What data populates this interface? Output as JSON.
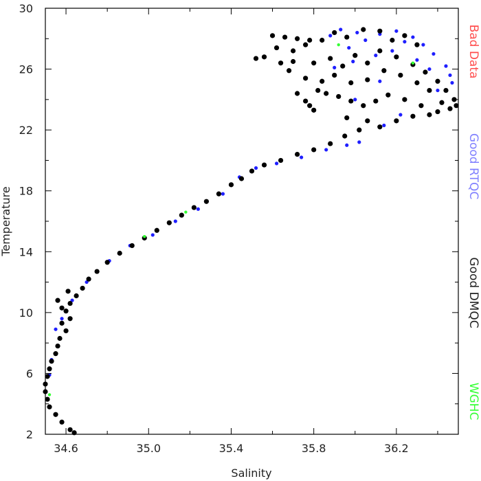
{
  "chart_data": {
    "type": "scatter",
    "title": "",
    "xlabel": "Salinity",
    "ylabel": "Temperature",
    "xlim": [
      34.5,
      36.5
    ],
    "ylim": [
      2,
      30
    ],
    "x_tick_labels": [
      "34.6",
      "35.0",
      "35.4",
      "35.8",
      "36.2"
    ],
    "y_tick_labels": [
      "2",
      "6",
      "10",
      "14",
      "18",
      "22",
      "26",
      "30"
    ],
    "grid": false,
    "legend_placement": "right, outside plot, vertical",
    "series": [
      {
        "name": "Bad Data",
        "color": "#ff4d4d",
        "points": []
      },
      {
        "name": "Good RTQC",
        "color": "#1f1fff",
        "points": [
          [
            35.93,
            28.6
          ],
          [
            36.01,
            28.4
          ],
          [
            36.12,
            28.3
          ],
          [
            36.2,
            28.5
          ],
          [
            36.28,
            28.1
          ],
          [
            36.33,
            27.6
          ],
          [
            36.38,
            27.0
          ],
          [
            36.44,
            26.2
          ],
          [
            36.46,
            25.6
          ],
          [
            36.47,
            25.1
          ],
          [
            36.4,
            24.6
          ],
          [
            36.3,
            26.6
          ],
          [
            36.18,
            27.2
          ],
          [
            36.05,
            27.9
          ],
          [
            35.97,
            27.4
          ],
          [
            35.88,
            28.2
          ],
          [
            36.24,
            27.8
          ],
          [
            36.36,
            26.0
          ],
          [
            36.1,
            26.9
          ],
          [
            35.99,
            26.5
          ],
          [
            35.86,
            20.7
          ],
          [
            35.74,
            20.2
          ],
          [
            35.62,
            19.8
          ],
          [
            35.52,
            19.5
          ],
          [
            35.96,
            21.0
          ],
          [
            36.02,
            21.2
          ],
          [
            35.44,
            18.9
          ],
          [
            35.36,
            17.8
          ],
          [
            35.24,
            16.8
          ],
          [
            35.13,
            16.0
          ],
          [
            35.02,
            15.1
          ],
          [
            34.91,
            14.4
          ],
          [
            34.81,
            13.4
          ],
          [
            34.7,
            12.0
          ],
          [
            34.63,
            10.8
          ],
          [
            34.58,
            9.6
          ],
          [
            34.55,
            8.9
          ],
          [
            34.53,
            6.9
          ],
          [
            34.52,
            5.9
          ],
          [
            36.14,
            22.3
          ],
          [
            36.22,
            23.0
          ],
          [
            36.12,
            25.2
          ],
          [
            35.9,
            26.1
          ],
          [
            36.0,
            24.0
          ]
        ]
      },
      {
        "name": "Good DMQC",
        "color": "#000000",
        "points": [
          [
            35.6,
            28.2
          ],
          [
            35.66,
            28.1
          ],
          [
            35.72,
            28.0
          ],
          [
            35.78,
            27.9
          ],
          [
            35.62,
            27.4
          ],
          [
            35.7,
            27.2
          ],
          [
            35.76,
            27.6
          ],
          [
            35.84,
            27.9
          ],
          [
            35.9,
            28.4
          ],
          [
            35.96,
            28.1
          ],
          [
            36.04,
            28.6
          ],
          [
            36.12,
            28.5
          ],
          [
            36.18,
            27.9
          ],
          [
            36.24,
            28.2
          ],
          [
            36.3,
            27.6
          ],
          [
            35.56,
            26.8
          ],
          [
            35.52,
            26.7
          ],
          [
            35.64,
            26.4
          ],
          [
            35.7,
            26.5
          ],
          [
            35.8,
            26.4
          ],
          [
            35.88,
            26.7
          ],
          [
            35.94,
            26.2
          ],
          [
            36.0,
            26.9
          ],
          [
            36.06,
            26.4
          ],
          [
            36.12,
            27.2
          ],
          [
            36.2,
            26.8
          ],
          [
            36.28,
            26.3
          ],
          [
            36.34,
            25.8
          ],
          [
            36.4,
            25.2
          ],
          [
            36.44,
            24.6
          ],
          [
            36.48,
            24.0
          ],
          [
            36.49,
            23.6
          ],
          [
            36.42,
            23.8
          ],
          [
            36.36,
            24.6
          ],
          [
            36.3,
            25.1
          ],
          [
            36.22,
            25.6
          ],
          [
            36.14,
            25.9
          ],
          [
            36.06,
            25.3
          ],
          [
            35.98,
            25.1
          ],
          [
            35.9,
            25.6
          ],
          [
            35.84,
            25.2
          ],
          [
            35.86,
            24.4
          ],
          [
            35.92,
            24.2
          ],
          [
            35.98,
            23.9
          ],
          [
            36.04,
            23.6
          ],
          [
            36.1,
            23.9
          ],
          [
            36.16,
            24.3
          ],
          [
            36.24,
            24.0
          ],
          [
            36.32,
            23.6
          ],
          [
            36.4,
            23.2
          ],
          [
            36.46,
            23.4
          ],
          [
            35.78,
            23.6
          ],
          [
            35.8,
            23.3
          ],
          [
            35.96,
            22.8
          ],
          [
            36.06,
            22.6
          ],
          [
            36.12,
            22.2
          ],
          [
            36.2,
            22.6
          ],
          [
            36.28,
            22.9
          ],
          [
            36.36,
            23.0
          ],
          [
            36.02,
            22.0
          ],
          [
            35.95,
            21.6
          ],
          [
            35.88,
            21.1
          ],
          [
            35.8,
            20.7
          ],
          [
            35.72,
            20.4
          ],
          [
            35.64,
            20.0
          ],
          [
            35.56,
            19.7
          ],
          [
            35.5,
            19.3
          ],
          [
            35.45,
            18.8
          ],
          [
            35.4,
            18.4
          ],
          [
            35.34,
            17.8
          ],
          [
            35.28,
            17.3
          ],
          [
            35.22,
            16.9
          ],
          [
            35.16,
            16.4
          ],
          [
            35.1,
            15.9
          ],
          [
            35.04,
            15.4
          ],
          [
            34.98,
            14.9
          ],
          [
            34.92,
            14.4
          ],
          [
            34.86,
            13.9
          ],
          [
            34.8,
            13.3
          ],
          [
            34.75,
            12.7
          ],
          [
            34.71,
            12.2
          ],
          [
            34.68,
            11.6
          ],
          [
            34.65,
            11.1
          ],
          [
            34.62,
            10.6
          ],
          [
            34.6,
            10.1
          ],
          [
            34.62,
            9.6
          ],
          [
            34.58,
            9.3
          ],
          [
            34.6,
            8.8
          ],
          [
            34.57,
            8.3
          ],
          [
            34.56,
            7.8
          ],
          [
            34.55,
            7.3
          ],
          [
            34.53,
            6.8
          ],
          [
            34.52,
            6.3
          ],
          [
            34.51,
            5.8
          ],
          [
            34.5,
            5.3
          ],
          [
            34.5,
            4.8
          ],
          [
            34.51,
            4.3
          ],
          [
            34.52,
            3.8
          ],
          [
            34.55,
            3.3
          ],
          [
            34.58,
            2.8
          ],
          [
            34.62,
            2.3
          ],
          [
            34.64,
            2.1
          ],
          [
            34.56,
            10.8
          ],
          [
            34.58,
            10.3
          ],
          [
            34.61,
            11.4
          ],
          [
            35.76,
            23.9
          ],
          [
            35.72,
            24.4
          ],
          [
            35.82,
            24.6
          ],
          [
            35.76,
            25.4
          ],
          [
            35.68,
            25.9
          ]
        ]
      },
      {
        "name": "WGHC",
        "color": "#33ff33",
        "points": [
          [
            35.92,
            27.6
          ],
          [
            36.28,
            26.4
          ],
          [
            35.18,
            16.6
          ],
          [
            34.98,
            15.0
          ],
          [
            34.52,
            4.6
          ]
        ]
      }
    ]
  }
}
